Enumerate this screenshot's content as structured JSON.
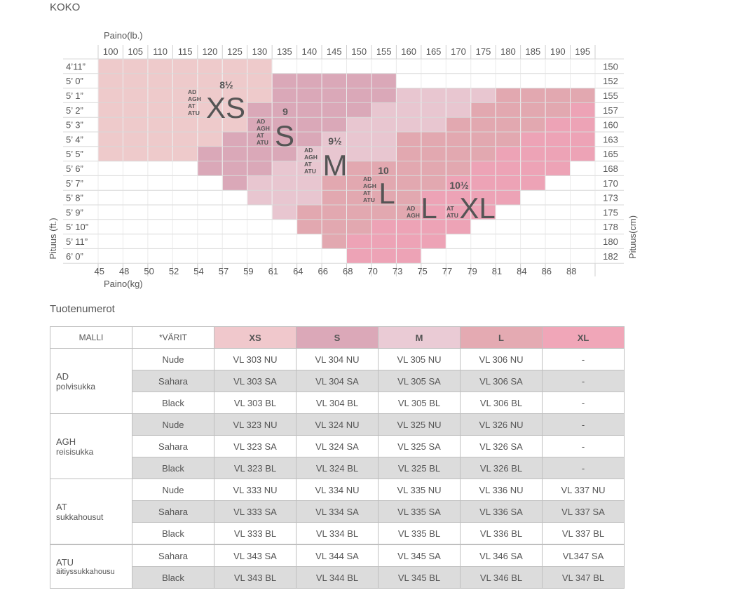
{
  "page_title": "KOKO",
  "products_title": "Tuotenumerot",
  "chart": {
    "top_axis_label": "Paino(lb.)",
    "bottom_axis_label": "Paino(kg)",
    "left_axis_label": "Pituus (ft.)",
    "right_axis_label": "Pituus(cm)",
    "lb": [
      "100",
      "105",
      "110",
      "115",
      "120",
      "125",
      "130",
      "135",
      "140",
      "145",
      "150",
      "155",
      "160",
      "165",
      "170",
      "175",
      "180",
      "185",
      "190",
      "195"
    ],
    "kg": [
      "45",
      "48",
      "50",
      "52",
      "54",
      "57",
      "59",
      "61",
      "64",
      "66",
      "68",
      "70",
      "73",
      "75",
      "77",
      "79",
      "81",
      "84",
      "86",
      "88"
    ],
    "ft": [
      "4’11”",
      "5’ 0”",
      "5’ 1”",
      "5’ 2”",
      "5’ 3”",
      "5’ 4”",
      "5’ 5”",
      "5’ 6”",
      "5’ 7”",
      "5’ 8”",
      "5’ 9”",
      "5’ 10”",
      "5’ 11”",
      "6’ 0”"
    ],
    "cm": [
      "150",
      "152",
      "155",
      "157",
      "160",
      "163",
      "165",
      "168",
      "170",
      "173",
      "175",
      "178",
      "180",
      "182"
    ],
    "sizes": [
      {
        "name": "XS",
        "num": "8½",
        "models": [
          "AD",
          "AGH",
          "AT",
          "ATU"
        ],
        "color": "#eecacb"
      },
      {
        "name": "S",
        "num": "9",
        "models": [
          "AD",
          "AGH",
          "AT",
          "ATU"
        ],
        "color": "#daa8b8"
      },
      {
        "name": "M",
        "num": "9½",
        "models": [
          "AD",
          "AGH",
          "AT",
          "ATU"
        ],
        "color": "#e8c6d0"
      },
      {
        "name": "L",
        "num": "10",
        "models": [
          "AD",
          "AGH",
          "AT",
          "ATU"
        ],
        "color": "#e2a8b0"
      },
      {
        "name": "L",
        "num": "",
        "models": [
          "AD",
          "AGH"
        ],
        "color": "#e2a8b0"
      },
      {
        "name": "XL",
        "num": "10½",
        "models": [
          "AT",
          "ATU"
        ],
        "color": "#eda3b6"
      }
    ]
  },
  "table": {
    "headers": {
      "model": "MALLI",
      "colors": "*VÄRIT",
      "xs": "XS",
      "s": "S",
      "m": "M",
      "l": "L",
      "xl": "XL"
    },
    "header_colors": {
      "xs": "#f0c8cc",
      "s": "#dba8b8",
      "m": "#eacbd5",
      "l": "#e4aab2",
      "xl": "#f0a6b8"
    },
    "groups": [
      {
        "name": "AD",
        "sub": "polvisukka",
        "rows": [
          {
            "color": "Nude",
            "v": [
              "VL 303 NU",
              "VL 304 NU",
              "VL 305 NU",
              "VL 306 NU",
              "-"
            ]
          },
          {
            "color": "Sahara",
            "v": [
              "VL 303 SA",
              "VL 304 SA",
              "VL 305 SA",
              "VL 306 SA",
              "-"
            ]
          },
          {
            "color": "Black",
            "v": [
              "VL 303 BL",
              "VL 304 BL",
              "VL 305 BL",
              "VL 306 BL",
              "-"
            ]
          }
        ]
      },
      {
        "name": "AGH",
        "sub": "reisisukka",
        "rows": [
          {
            "color": "Nude",
            "v": [
              "VL 323 NU",
              "VL 324 NU",
              "VL 325 NU",
              "VL 326 NU",
              "-"
            ]
          },
          {
            "color": "Sahara",
            "v": [
              "VL 323 SA",
              "VL 324 SA",
              "VL 325 SA",
              "VL 326 SA",
              "-"
            ]
          },
          {
            "color": "Black",
            "v": [
              "VL 323 BL",
              "VL 324 BL",
              "VL 325 BL",
              "VL 326 BL",
              "-"
            ]
          }
        ]
      },
      {
        "name": "AT",
        "sub": "sukkahousut",
        "rows": [
          {
            "color": "Nude",
            "v": [
              "VL 333 NU",
              "VL 334 NU",
              "VL 335 NU",
              "VL 336 NU",
              "VL 337 NU"
            ]
          },
          {
            "color": "Sahara",
            "v": [
              "VL 333 SA",
              "VL 334 SA",
              "VL 335 SA",
              "VL 336 SA",
              "VL 337 SA"
            ]
          },
          {
            "color": "Black",
            "v": [
              "VL 333 BL",
              "VL 334 BL",
              "VL 335 BL",
              "VL 336 BL",
              "VL 337 BL"
            ]
          }
        ]
      },
      {
        "name": "ATU",
        "sub": "äitiyssukkahousu",
        "rows": [
          {
            "color": "Sahara",
            "v": [
              "VL 343 SA",
              "VL 344 SA",
              "VL 345 SA",
              "VL 346 SA",
              "VL347 SA"
            ]
          },
          {
            "color": "Black",
            "v": [
              "VL 343 BL",
              "VL 344 BL",
              "VL 345 BL",
              "VL 346 BL",
              "VL 347 BL"
            ]
          }
        ]
      }
    ]
  }
}
